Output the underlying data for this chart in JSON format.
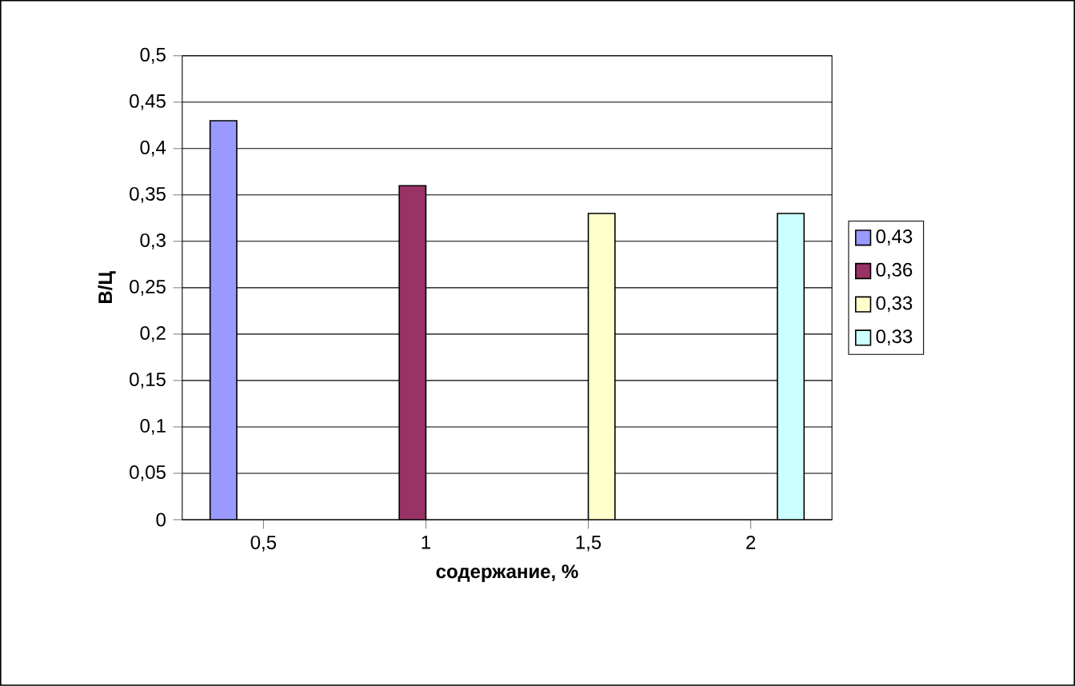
{
  "chart_data": {
    "type": "bar",
    "xlabel": "содержание, %",
    "ylabel": "В/Ц",
    "categories": [
      "0,5",
      "1",
      "1,5",
      "2"
    ],
    "series": [
      {
        "name": "0,43",
        "color": "#9999ff",
        "values": [
          0.43,
          null,
          null,
          null
        ]
      },
      {
        "name": "0,36",
        "color": "#993366",
        "values": [
          null,
          0.36,
          null,
          null
        ]
      },
      {
        "name": "0,33",
        "color": "#ffffcc",
        "values": [
          null,
          null,
          0.33,
          null
        ]
      },
      {
        "name": "0,33",
        "color": "#ccffff",
        "values": [
          null,
          null,
          null,
          0.33
        ]
      }
    ],
    "ylim": [
      0,
      0.5
    ],
    "yticks": [
      0,
      {
        "value": 0.05,
        "label": "0,05"
      },
      {
        "value": 0.1,
        "label": "0,1"
      },
      {
        "value": 0.15,
        "label": "0,15"
      },
      {
        "value": 0.2,
        "label": "0,2"
      },
      {
        "value": 0.25,
        "label": "0,25"
      },
      {
        "value": 0.3,
        "label": "0,3"
      },
      {
        "value": 0.35,
        "label": "0,35"
      },
      {
        "value": 0.4,
        "label": "0,4"
      },
      {
        "value": 0.45,
        "label": "0,45"
      },
      {
        "value": 0.5,
        "label": "0,5"
      }
    ],
    "grid": "y",
    "legend": "right"
  }
}
